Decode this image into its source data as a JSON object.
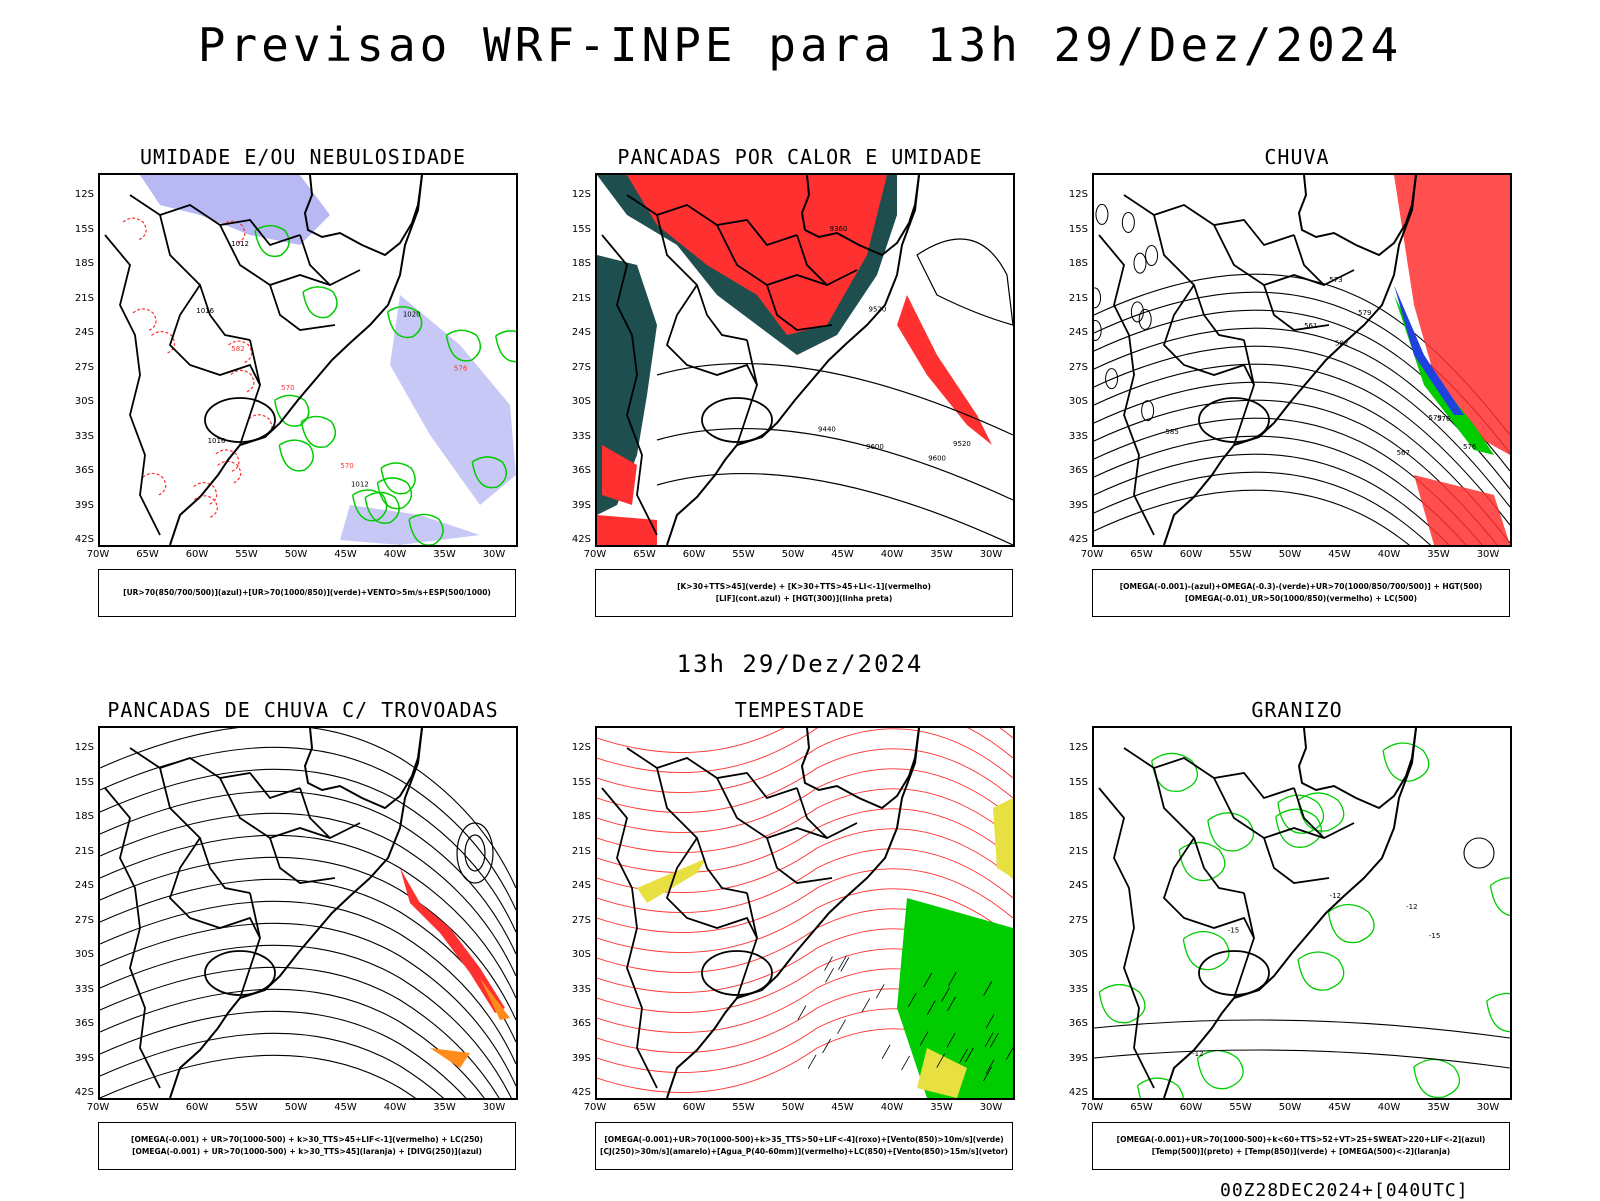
{
  "title": "Previsao WRF-INPE  para 13h 29/Dez/2024",
  "mid_time": "13h 29/Dez/2024",
  "run_info": "00Z28DEC2024+[040UTC]",
  "lat_labels": [
    "12S",
    "15S",
    "18S",
    "21S",
    "24S",
    "27S",
    "30S",
    "33S",
    "36S",
    "39S",
    "42S"
  ],
  "lon_labels": [
    "70W",
    "65W",
    "60W",
    "55W",
    "50W",
    "45W",
    "40W",
    "35W",
    "30W"
  ],
  "panels": [
    {
      "title": "UMIDADE E/OU NEBULOSIDADE",
      "legend": [
        "[UR>70(850/700/500)](azul)+[UR>70(1000/850)](verde)+VENTO>5m/s+ESP(500/1000)"
      ],
      "contour_labels": [
        "1012",
        "1012",
        "1016",
        "1016",
        "1020",
        "570",
        "576",
        "582",
        "570"
      ]
    },
    {
      "title": "PANCADAS POR CALOR E UMIDADE",
      "legend": [
        "[K>30+TTS>45](verde) + [K>30+TTS>45+LI<-1](vermelho)",
        "[LIF](cont.azul) + [HGT(300)](linha preta)"
      ],
      "contour_labels": [
        "9600",
        "9520",
        "9440",
        "9360",
        "9600",
        "9520"
      ]
    },
    {
      "title": "CHUVA",
      "legend": [
        "[OMEGA(-0.001)-(azul)+OMEGA(-0.3)-(verde)+UR>70(1000/850/700/500)] + HGT(500)",
        "[OMEGA(-0.01)_UR>50(1000/850)(vermelho) + LC(500)"
      ],
      "contour_labels": [
        "585",
        "582",
        "579",
        "576",
        "573",
        "567",
        "561",
        "579",
        "576"
      ]
    },
    {
      "title": "PANCADAS DE CHUVA C/ TROVOADAS",
      "legend": [
        "[OMEGA(-0.001) + UR>70(1000-500) + k>30_TTS>45+LIF<-1](vermelho) + LC(250)",
        "[OMEGA(-0.001) + UR>70(1000-500) + k>30_TTS>45](laranja) + [DIVG(250)](azul)"
      ],
      "contour_labels": []
    },
    {
      "title": "TEMPESTADE",
      "legend": [
        "[OMEGA(-0.001)+UR>70(1000-500)+k>35_TTS>50+LIF<-4](roxo)+[Vento(850)>10m/s](verde)",
        "[CJ(250)>30m/s](amarelo)+[Agua_P(40-60mm)](vermelho)+LC(850)+[Vento(850)>15m/s](vetor)"
      ],
      "contour_labels": []
    },
    {
      "title": "GRANIZO",
      "legend": [
        "[OMEGA(-0.001)+UR>70(1000-500)+k<60+TTS>52+VT>25+SWEAT>220+LIF<-2](azul)",
        "[Temp(500)](preto) + [Temp(850)](verde) + [OMEGA(500)<-2](laranja)"
      ],
      "contour_labels": [
        "-12",
        "-12",
        "-15",
        "-12",
        "-15"
      ]
    }
  ],
  "colors": {
    "blue": "#9a9af0",
    "green": "#00cc00",
    "red": "#ff3030",
    "darkteal": "#1f4e4e",
    "orange": "#ff8c1a",
    "yellow": "#e8e040",
    "black": "#000000"
  }
}
